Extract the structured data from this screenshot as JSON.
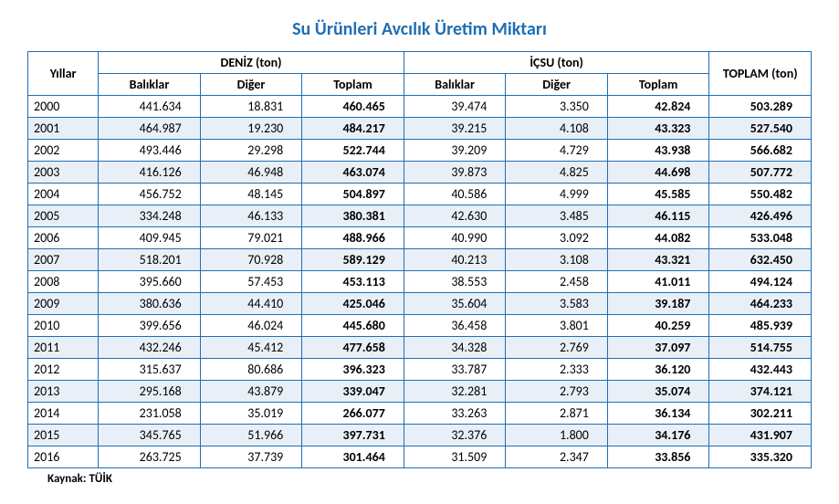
{
  "title": "Su Ürünleri Avcılık Üretim Miktarı",
  "source": "Kaynak: TÜİK",
  "table": {
    "type": "table",
    "header_row1": {
      "years": "Yıllar",
      "sea": "DENİZ (ton)",
      "inland": "İÇSU (ton)",
      "total": "TOPLAM (ton)"
    },
    "header_row2": {
      "fish": "Balıklar",
      "other": "Diğer",
      "subtotal": "Toplam"
    },
    "colors": {
      "border": "#1f6fb3",
      "title": "#1f6fb3",
      "row_alt": "#e8eff7",
      "row_norm": "#ffffff",
      "text": "#000000"
    },
    "fonts": {
      "title_size_pt": 15,
      "body_size_pt": 11,
      "family": "Calibri"
    },
    "columns": [
      "Yıllar",
      "Balıklar",
      "Diğer",
      "Toplam",
      "Balıklar",
      "Diğer",
      "Toplam",
      "TOPLAM (ton)"
    ],
    "bold_columns": [
      3,
      6,
      7
    ],
    "rows": [
      {
        "year": "2000",
        "d_fish": "441.634",
        "d_other": "18.831",
        "d_total": "460.465",
        "i_fish": "39.474",
        "i_other": "3.350",
        "i_total": "42.824",
        "total": "503.289"
      },
      {
        "year": "2001",
        "d_fish": "464.987",
        "d_other": "19.230",
        "d_total": "484.217",
        "i_fish": "39.215",
        "i_other": "4.108",
        "i_total": "43.323",
        "total": "527.540"
      },
      {
        "year": "2002",
        "d_fish": "493.446",
        "d_other": "29.298",
        "d_total": "522.744",
        "i_fish": "39.209",
        "i_other": "4.729",
        "i_total": "43.938",
        "total": "566.682"
      },
      {
        "year": "2003",
        "d_fish": "416.126",
        "d_other": "46.948",
        "d_total": "463.074",
        "i_fish": "39.873",
        "i_other": "4.825",
        "i_total": "44.698",
        "total": "507.772"
      },
      {
        "year": "2004",
        "d_fish": "456.752",
        "d_other": "48.145",
        "d_total": "504.897",
        "i_fish": "40.586",
        "i_other": "4.999",
        "i_total": "45.585",
        "total": "550.482"
      },
      {
        "year": "2005",
        "d_fish": "334.248",
        "d_other": "46.133",
        "d_total": "380.381",
        "i_fish": "42.630",
        "i_other": "3.485",
        "i_total": "46.115",
        "total": "426.496"
      },
      {
        "year": "2006",
        "d_fish": "409.945",
        "d_other": "79.021",
        "d_total": "488.966",
        "i_fish": "40.990",
        "i_other": "3.092",
        "i_total": "44.082",
        "total": "533.048"
      },
      {
        "year": "2007",
        "d_fish": "518.201",
        "d_other": "70.928",
        "d_total": "589.129",
        "i_fish": "40.213",
        "i_other": "3.108",
        "i_total": "43.321",
        "total": "632.450"
      },
      {
        "year": "2008",
        "d_fish": "395.660",
        "d_other": "57.453",
        "d_total": "453.113",
        "i_fish": "38.553",
        "i_other": "2.458",
        "i_total": "41.011",
        "total": "494.124"
      },
      {
        "year": "2009",
        "d_fish": "380.636",
        "d_other": "44.410",
        "d_total": "425.046",
        "i_fish": "35.604",
        "i_other": "3.583",
        "i_total": "39.187",
        "total": "464.233"
      },
      {
        "year": "2010",
        "d_fish": "399.656",
        "d_other": "46.024",
        "d_total": "445.680",
        "i_fish": "36.458",
        "i_other": "3.801",
        "i_total": "40.259",
        "total": "485.939"
      },
      {
        "year": "2011",
        "d_fish": "432.246",
        "d_other": "45.412",
        "d_total": "477.658",
        "i_fish": "34.328",
        "i_other": "2.769",
        "i_total": "37.097",
        "total": "514.755"
      },
      {
        "year": "2012",
        "d_fish": "315.637",
        "d_other": "80.686",
        "d_total": "396.323",
        "i_fish": "33.787",
        "i_other": "2.333",
        "i_total": "36.120",
        "total": "432.443"
      },
      {
        "year": "2013",
        "d_fish": "295.168",
        "d_other": "43.879",
        "d_total": "339.047",
        "i_fish": "32.281",
        "i_other": "2.793",
        "i_total": "35.074",
        "total": "374.121"
      },
      {
        "year": "2014",
        "d_fish": "231.058",
        "d_other": "35.019",
        "d_total": "266.077",
        "i_fish": "33.263",
        "i_other": "2.871",
        "i_total": "36.134",
        "total": "302.211"
      },
      {
        "year": "2015",
        "d_fish": "345.765",
        "d_other": "51.966",
        "d_total": "397.731",
        "i_fish": "32.376",
        "i_other": "1.800",
        "i_total": "34.176",
        "total": "431.907"
      },
      {
        "year": "2016",
        "d_fish": "263.725",
        "d_other": "37.739",
        "d_total": "301.464",
        "i_fish": "31.509",
        "i_other": "2.347",
        "i_total": "33.856",
        "total": "335.320"
      }
    ]
  }
}
